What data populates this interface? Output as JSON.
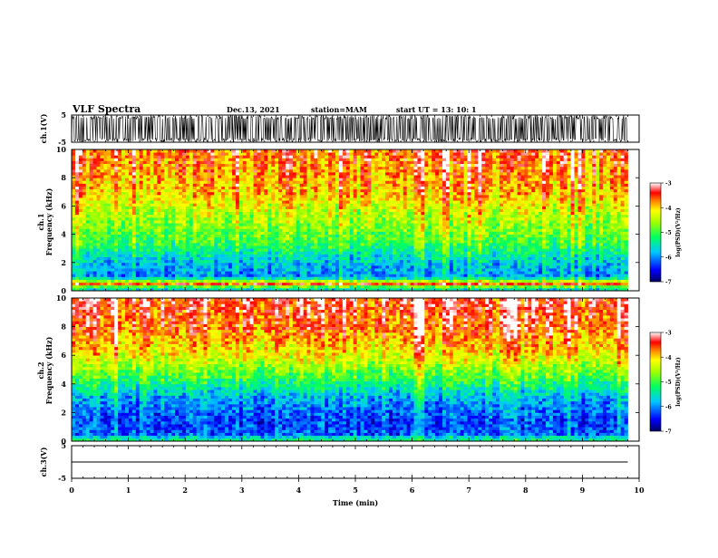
{
  "header": {
    "title": "VLF Spectra",
    "date": "Dec.13, 2021",
    "station": "station=MAM",
    "start": "start UT = 13: 10: 1"
  },
  "chart_data": [
    {
      "type": "line",
      "id": "ch1-waveform",
      "ylabel": "ch.1(V)",
      "xlim": [
        0,
        10
      ],
      "ylim": [
        -5,
        5
      ],
      "yticks": [
        "5",
        "-5"
      ],
      "signal": "dense broadband waveform spanning nearly the full -5 to 5 V range from 0 to about 9.8 min",
      "data_end_min": 9.8
    },
    {
      "type": "heatmap",
      "id": "ch1-spectrogram",
      "ylabel_top": "ch.1",
      "ylabel": "Frequency (kHz)",
      "xlim": [
        0,
        10
      ],
      "ylim": [
        0,
        10
      ],
      "yticks": [
        "0",
        "2",
        "4",
        "6",
        "8",
        "10"
      ],
      "colorbar": {
        "label": "log(PSD)(V²/Hz)",
        "ticks": [
          "-3",
          "-4",
          "-5",
          "-6",
          "-7"
        ],
        "range": [
          -7,
          -3
        ]
      },
      "data_end_min": 9.8,
      "profile": [
        {
          "f_khz": 0.2,
          "log_psd": -5.6
        },
        {
          "f_khz": 0.5,
          "log_psd": -3.6
        },
        {
          "f_khz": 1.0,
          "log_psd": -6.0
        },
        {
          "f_khz": 1.6,
          "log_psd": -5.9
        },
        {
          "f_khz": 2.4,
          "log_psd": -5.6
        },
        {
          "f_khz": 3.5,
          "log_psd": -5.0
        },
        {
          "f_khz": 5.0,
          "log_psd": -4.6
        },
        {
          "f_khz": 7.0,
          "log_psd": -4.0
        },
        {
          "f_khz": 10.0,
          "log_psd": -3.6
        }
      ]
    },
    {
      "type": "heatmap",
      "id": "ch2-spectrogram",
      "ylabel_top": "ch.2",
      "ylabel": "Frequency (kHz)",
      "xlim": [
        0,
        10
      ],
      "ylim": [
        0,
        10
      ],
      "yticks": [
        "0",
        "2",
        "4",
        "6",
        "8",
        "10"
      ],
      "colorbar": {
        "label": "log(PSD)(V²/Hz)",
        "ticks": [
          "-3",
          "-4",
          "-5",
          "-6",
          "-7"
        ],
        "range": [
          -7,
          -3
        ]
      },
      "data_end_min": 9.8,
      "profile": [
        {
          "f_khz": 0.2,
          "log_psd": -5.4
        },
        {
          "f_khz": 0.5,
          "log_psd": -6.2
        },
        {
          "f_khz": 1.5,
          "log_psd": -6.3
        },
        {
          "f_khz": 3.0,
          "log_psd": -5.9
        },
        {
          "f_khz": 4.5,
          "log_psd": -5.0
        },
        {
          "f_khz": 6.0,
          "log_psd": -4.2
        },
        {
          "f_khz": 8.0,
          "log_psd": -3.6
        },
        {
          "f_khz": 10.0,
          "log_psd": -3.4
        }
      ]
    },
    {
      "type": "line",
      "id": "ch3-waveform",
      "ylabel": "ch.3(V)",
      "xlim": [
        0,
        10
      ],
      "ylim": [
        -5,
        5
      ],
      "yticks": [
        "5",
        "-5"
      ],
      "xlabel": "Time (min)",
      "xticks": [
        "0",
        "1",
        "2",
        "3",
        "4",
        "5",
        "6",
        "7",
        "8",
        "9",
        "10"
      ],
      "signal": "flat line near 0 V from 0 to about 9.8 min",
      "level_v": 0,
      "data_end_min": 9.8
    }
  ]
}
